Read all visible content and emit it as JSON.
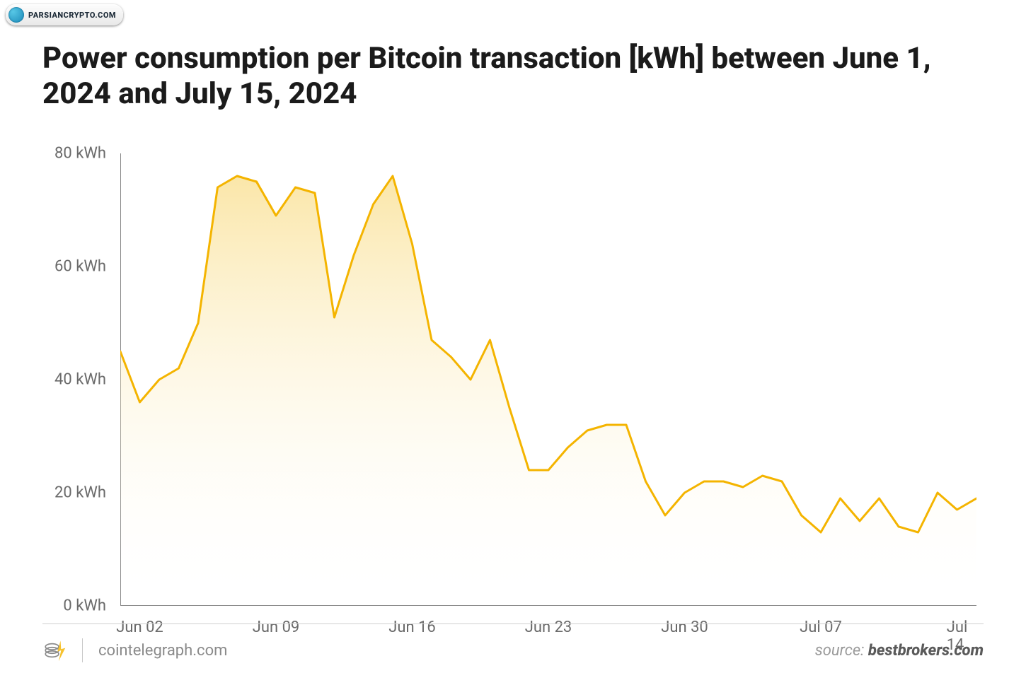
{
  "watermark": {
    "text": "PARSIANCRYPTO.COM"
  },
  "title": "Power consumption per Bitcoin transaction [kWh] between June 1, 2024 and July 15, 2024",
  "chart": {
    "type": "area",
    "line_color": "#f4b400",
    "area_top_color": "#f8d97a",
    "area_top_opacity": 0.65,
    "area_bottom_color": "#ffffff",
    "area_bottom_opacity": 0.0,
    "axis_color": "#888888",
    "label_color": "#6a6a6a",
    "label_fontsize": 22,
    "ylim": [
      0,
      80
    ],
    "ytick_step": 20,
    "y_unit": "kWh",
    "yticks": [
      {
        "v": 0,
        "label": "0 kWh"
      },
      {
        "v": 20,
        "label": "20 kWh"
      },
      {
        "v": 40,
        "label": "40 kWh"
      },
      {
        "v": 60,
        "label": "60 kWh"
      },
      {
        "v": 80,
        "label": "80 kWh"
      }
    ],
    "x_count": 45,
    "xticks": [
      {
        "i": 1,
        "label": "Jun 02"
      },
      {
        "i": 8,
        "label": "Jun 09"
      },
      {
        "i": 15,
        "label": "Jun 16"
      },
      {
        "i": 22,
        "label": "Jun 23"
      },
      {
        "i": 29,
        "label": "Jun 30"
      },
      {
        "i": 36,
        "label": "Jul 07"
      },
      {
        "i": 43,
        "label": "Jul 14"
      }
    ],
    "series": {
      "values": [
        45,
        36,
        40,
        42,
        50,
        74,
        76,
        75,
        69,
        74,
        73,
        51,
        62,
        71,
        76,
        64,
        47,
        44,
        40,
        47,
        35,
        24,
        24,
        28,
        31,
        32,
        32,
        22,
        16,
        20,
        22,
        22,
        21,
        23,
        22,
        16,
        13,
        19,
        15,
        19,
        14,
        13,
        20,
        17,
        19
      ],
      "dash_segments": [
        {
          "from": 6,
          "to": 8
        }
      ]
    }
  },
  "footer": {
    "site": "cointelegraph.com",
    "source_prefix": "source: ",
    "source": "bestbrokers.com"
  }
}
